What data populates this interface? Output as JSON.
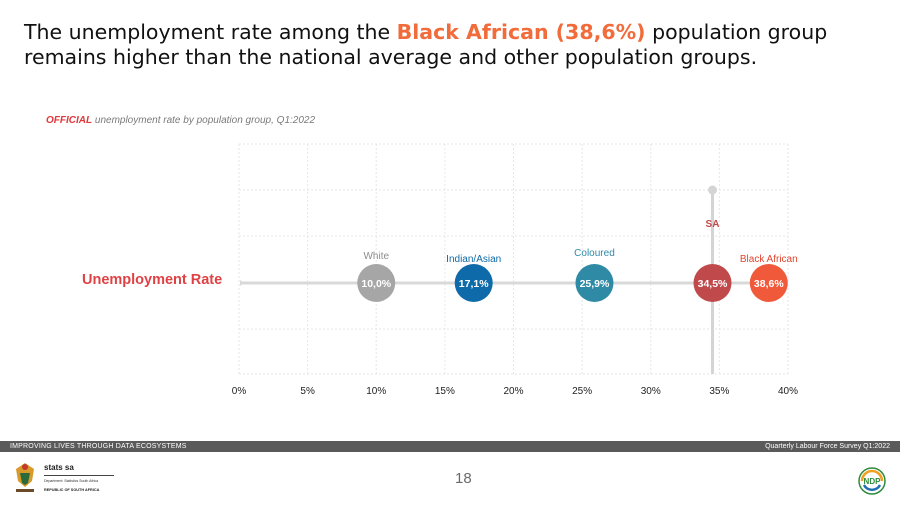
{
  "headline": {
    "part1": "The unemployment rate among the ",
    "highlight": "Black African (38,6%)",
    "part2": " population group remains higher than the national average and other population groups."
  },
  "subtitle": {
    "official": "OFFICIAL",
    "rest": " unemployment rate by population group, Q1:2022"
  },
  "row_label": "Unemployment Rate",
  "chart_data": {
    "type": "scatter",
    "xlim": [
      0,
      40
    ],
    "x_ticks": [
      "0%",
      "5%",
      "10%",
      "15%",
      "20%",
      "25%",
      "30%",
      "35%",
      "40%"
    ],
    "x_tick_values": [
      0,
      5,
      10,
      15,
      20,
      25,
      30,
      35,
      40
    ],
    "grid": true,
    "points": [
      {
        "name": "White",
        "value": 10.0,
        "label": "10,0%",
        "color": "#a6a6a6",
        "label_color": "#8c8c8c",
        "name_position": "above"
      },
      {
        "name": "Indian/Asian",
        "value": 17.1,
        "label": "17,1%",
        "color": "#0e6aa8",
        "label_color": "#0e6aa8",
        "name_position": "above"
      },
      {
        "name": "Coloured",
        "value": 25.9,
        "label": "25,9%",
        "color": "#2f8aa6",
        "label_color": "#2f8aa6",
        "name_position": "above"
      },
      {
        "name": "SA",
        "value": 34.5,
        "label": "34,5%",
        "color": "#c0494c",
        "label_color": "#c0494c",
        "name_position": "above"
      },
      {
        "name": "Black African",
        "value": 38.6,
        "label": "38,6%",
        "color": "#f0593a",
        "label_color": "#e0442f",
        "name_position": "above"
      }
    ]
  },
  "footer": {
    "left": "IMPROVING LIVES THROUGH DATA ECOSYSTEMS",
    "right": "Quarterly Labour Force Survey Q1:2022"
  },
  "page_number": "18",
  "logo_left": {
    "name": "stats sa",
    "dept": "Department: Statistics South Africa",
    "country": "REPUBLIC OF SOUTH AFRICA"
  },
  "logo_right": {
    "name": "NDP"
  },
  "colors": {
    "headline_highlight": "#f26b3a",
    "official": "#e0383a",
    "row_label": "#e04144",
    "footer_bar": "#5a5a5a",
    "track": "#d9d9d9"
  }
}
